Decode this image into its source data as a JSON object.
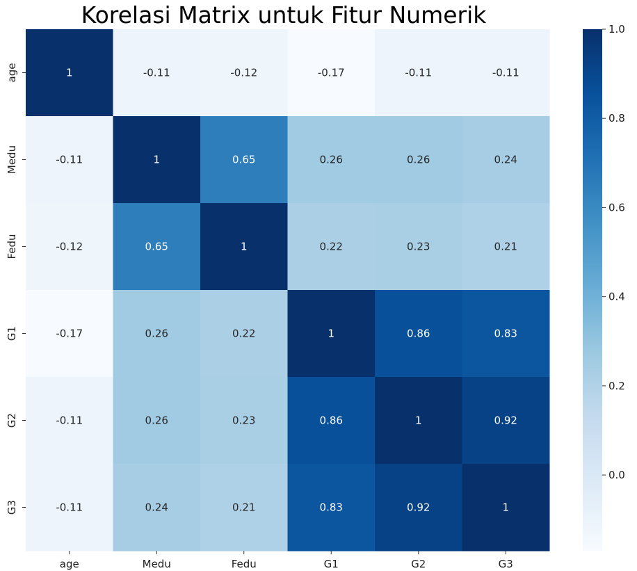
{
  "chart_data": {
    "type": "heatmap",
    "title": "Korelasi Matrix untuk Fitur Numerik",
    "xlabel": "",
    "ylabel": "",
    "x_categories": [
      "age",
      "Medu",
      "Fedu",
      "G1",
      "G2",
      "G3"
    ],
    "y_categories": [
      "age",
      "Medu",
      "Fedu",
      "G1",
      "G2",
      "G3"
    ],
    "values": [
      [
        1,
        -0.11,
        -0.12,
        -0.17,
        -0.11,
        -0.11
      ],
      [
        -0.11,
        1,
        0.65,
        0.26,
        0.26,
        0.24
      ],
      [
        -0.12,
        0.65,
        1,
        0.22,
        0.23,
        0.21
      ],
      [
        -0.17,
        0.26,
        0.22,
        1,
        0.86,
        0.83
      ],
      [
        -0.11,
        0.26,
        0.23,
        0.86,
        1,
        0.92
      ],
      [
        -0.11,
        0.24,
        0.21,
        0.83,
        0.92,
        1
      ]
    ],
    "value_labels": [
      [
        "1",
        "-0.11",
        "-0.12",
        "-0.17",
        "-0.11",
        "-0.11"
      ],
      [
        "-0.11",
        "1",
        "0.65",
        "0.26",
        "0.26",
        "0.24"
      ],
      [
        "-0.12",
        "0.65",
        "1",
        "0.22",
        "0.23",
        "0.21"
      ],
      [
        "-0.17",
        "0.26",
        "0.22",
        "1",
        "0.86",
        "0.83"
      ],
      [
        "-0.11",
        "0.26",
        "0.23",
        "0.86",
        "1",
        "0.92"
      ],
      [
        "-0.11",
        "0.24",
        "0.21",
        "0.83",
        "0.92",
        "1"
      ]
    ],
    "colormap": "Blues",
    "color_range": [
      -0.17,
      1.0
    ],
    "colorbar": {
      "ticks": [
        0.0,
        0.2,
        0.4,
        0.6,
        0.8,
        1.0
      ],
      "tick_labels": [
        "0.0",
        "0.2",
        "0.4",
        "0.6",
        "0.8",
        "1.0"
      ],
      "placement": "right"
    },
    "grid": false
  }
}
